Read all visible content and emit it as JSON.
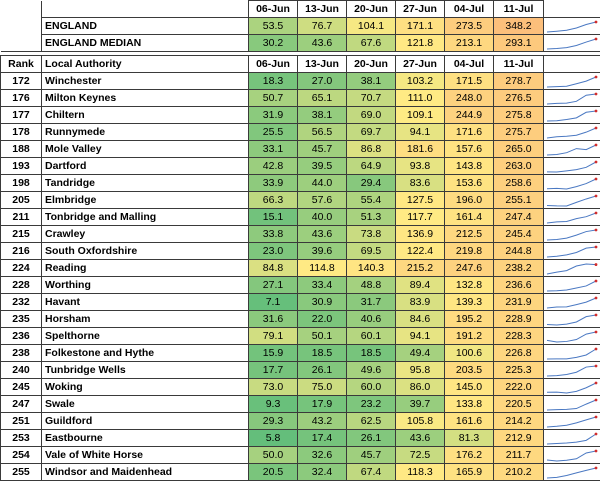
{
  "header": {
    "rank_label": "Rank",
    "authority_label": "Local Authority",
    "dates": [
      "06-Jun",
      "13-Jun",
      "20-Jun",
      "27-Jun",
      "04-Jul",
      "11-Jul"
    ]
  },
  "summary_rows": [
    {
      "name": "ENGLAND",
      "values": [
        "53.5",
        "76.7",
        "104.1",
        "171.1",
        "273.5",
        "348.2"
      ]
    },
    {
      "name": "ENGLAND MEDIAN",
      "values": [
        "30.2",
        "43.6",
        "67.6",
        "121.8",
        "213.1",
        "293.1"
      ]
    }
  ],
  "rows": [
    {
      "rank": "172",
      "name": "Winchester",
      "values": [
        "18.3",
        "27.0",
        "38.1",
        "103.2",
        "171.5",
        "278.7"
      ]
    },
    {
      "rank": "176",
      "name": "Milton Keynes",
      "values": [
        "50.7",
        "65.1",
        "70.7",
        "111.0",
        "248.0",
        "276.5"
      ]
    },
    {
      "rank": "177",
      "name": "Chiltern",
      "values": [
        "31.9",
        "38.1",
        "69.0",
        "109.1",
        "244.9",
        "275.8"
      ]
    },
    {
      "rank": "178",
      "name": "Runnymede",
      "values": [
        "25.5",
        "56.5",
        "69.7",
        "94.1",
        "171.6",
        "275.7"
      ]
    },
    {
      "rank": "188",
      "name": "Mole Valley",
      "values": [
        "33.1",
        "45.7",
        "86.8",
        "181.6",
        "157.6",
        "265.0"
      ]
    },
    {
      "rank": "193",
      "name": "Dartford",
      "values": [
        "42.8",
        "39.5",
        "64.9",
        "93.8",
        "143.8",
        "263.0"
      ]
    },
    {
      "rank": "198",
      "name": "Tandridge",
      "values": [
        "33.9",
        "44.0",
        "29.4",
        "83.6",
        "153.6",
        "258.6"
      ]
    },
    {
      "rank": "205",
      "name": "Elmbridge",
      "values": [
        "66.3",
        "57.6",
        "55.4",
        "127.5",
        "196.0",
        "255.1"
      ]
    },
    {
      "rank": "211",
      "name": "Tonbridge and Malling",
      "values": [
        "15.1",
        "40.0",
        "51.3",
        "117.7",
        "161.4",
        "247.4"
      ]
    },
    {
      "rank": "215",
      "name": "Crawley",
      "values": [
        "33.8",
        "43.6",
        "73.8",
        "136.9",
        "212.5",
        "245.4"
      ]
    },
    {
      "rank": "216",
      "name": "South Oxfordshire",
      "values": [
        "23.0",
        "39.6",
        "69.5",
        "122.4",
        "219.8",
        "244.8"
      ]
    },
    {
      "rank": "224",
      "name": "Reading",
      "values": [
        "84.8",
        "114.8",
        "140.3",
        "215.2",
        "247.6",
        "238.2"
      ]
    },
    {
      "rank": "228",
      "name": "Worthing",
      "values": [
        "27.1",
        "33.4",
        "48.8",
        "89.4",
        "132.8",
        "236.6"
      ]
    },
    {
      "rank": "232",
      "name": "Havant",
      "values": [
        "7.1",
        "30.9",
        "31.7",
        "83.9",
        "139.3",
        "231.9"
      ]
    },
    {
      "rank": "235",
      "name": "Horsham",
      "values": [
        "31.6",
        "22.0",
        "40.6",
        "84.6",
        "195.2",
        "228.9"
      ]
    },
    {
      "rank": "236",
      "name": "Spelthorne",
      "values": [
        "79.1",
        "50.1",
        "60.1",
        "94.1",
        "191.2",
        "228.3"
      ]
    },
    {
      "rank": "238",
      "name": "Folkestone and Hythe",
      "values": [
        "15.9",
        "18.5",
        "18.5",
        "49.4",
        "100.6",
        "226.8"
      ]
    },
    {
      "rank": "240",
      "name": "Tunbridge Wells",
      "values": [
        "17.7",
        "26.1",
        "49.6",
        "95.8",
        "203.5",
        "225.3"
      ]
    },
    {
      "rank": "245",
      "name": "Woking",
      "values": [
        "73.0",
        "75.0",
        "60.0",
        "86.0",
        "145.0",
        "222.0"
      ]
    },
    {
      "rank": "247",
      "name": "Swale",
      "values": [
        "9.3",
        "17.9",
        "23.2",
        "39.7",
        "133.8",
        "220.5"
      ]
    },
    {
      "rank": "251",
      "name": "Guildford",
      "values": [
        "29.3",
        "43.2",
        "62.5",
        "105.8",
        "161.6",
        "214.2"
      ]
    },
    {
      "rank": "253",
      "name": "Eastbourne",
      "values": [
        "5.8",
        "17.4",
        "26.1",
        "43.6",
        "81.3",
        "212.9"
      ]
    },
    {
      "rank": "254",
      "name": "Vale of White Horse",
      "values": [
        "50.0",
        "32.6",
        "45.7",
        "72.5",
        "176.2",
        "211.7"
      ]
    },
    {
      "rank": "255",
      "name": "Windsor and Maidenhead",
      "values": [
        "20.5",
        "32.4",
        "67.4",
        "118.3",
        "165.9",
        "210.2"
      ]
    }
  ],
  "colors": {
    "low": "#63be7b",
    "mid": "#ffeb84",
    "high": "#fcbf7b",
    "spark_line": "#4a78c2",
    "spark_last": "#d12d2d",
    "header_bg": "#ffffff"
  },
  "scale": {
    "min": 5,
    "mid": 110,
    "max": 350
  }
}
